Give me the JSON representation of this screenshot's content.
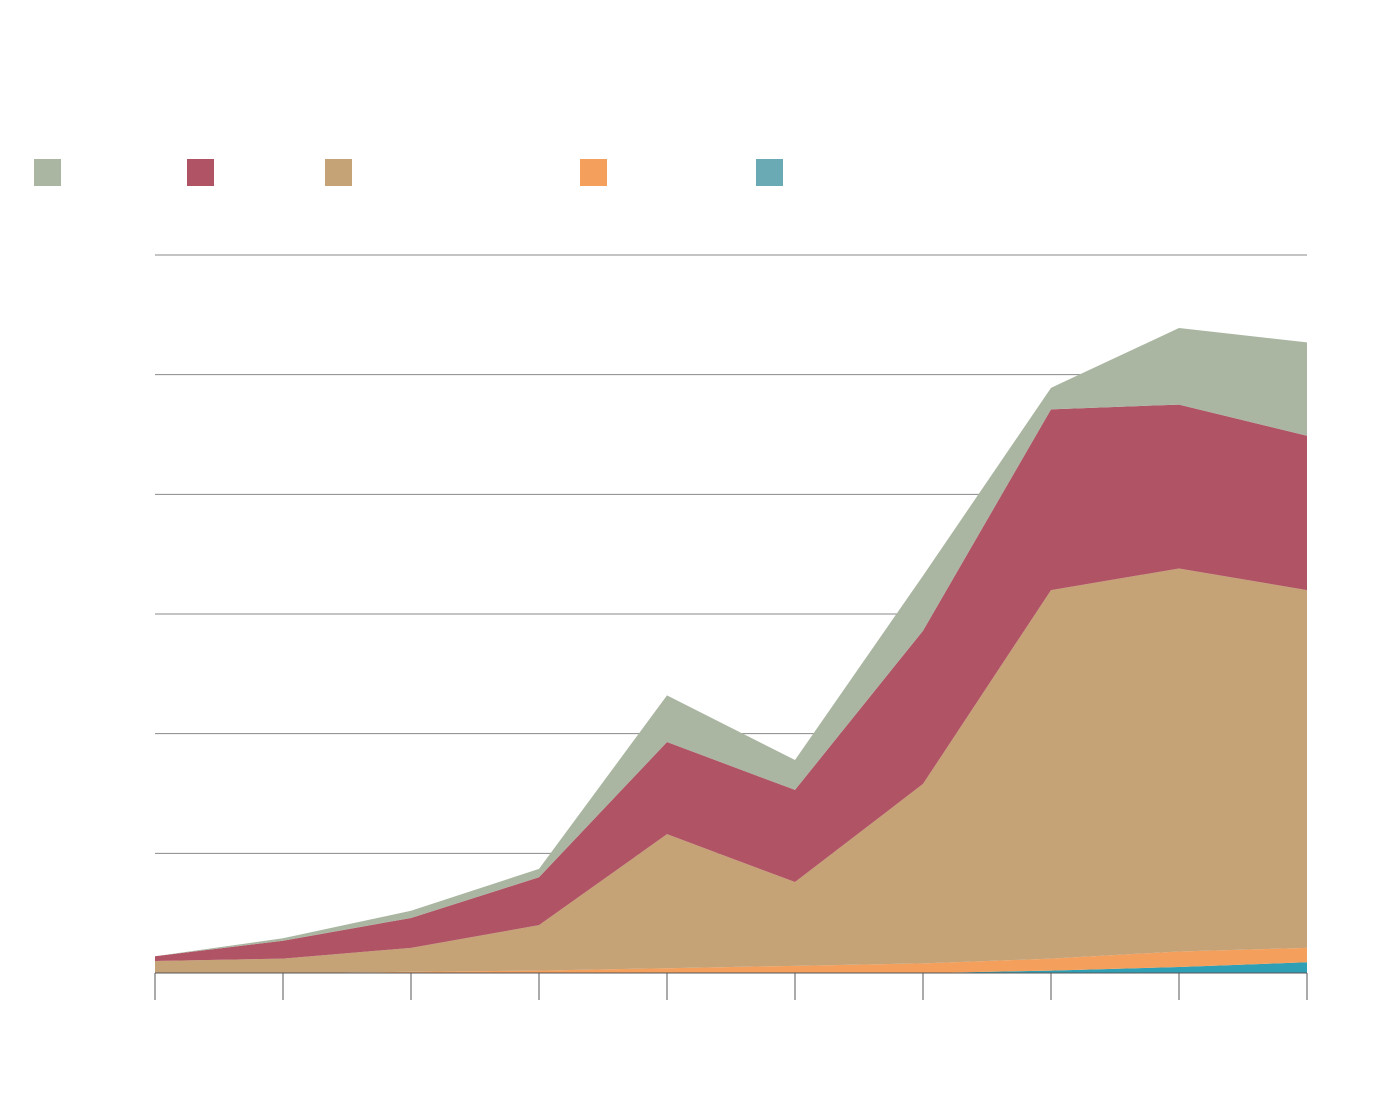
{
  "chart_data": {
    "type": "area",
    "stacked": true,
    "title": "",
    "xlabel": "",
    "ylabel": "",
    "x": [
      0,
      1,
      2,
      3,
      4,
      5,
      6,
      7,
      8,
      9
    ],
    "x_tick_labels": [
      "",
      "",
      "",
      "",
      "",
      "",
      "",
      "",
      "",
      ""
    ],
    "ylim": [
      0,
      6
    ],
    "y_gridlines": [
      1,
      2,
      3,
      4,
      5,
      6
    ],
    "y_tick_labels": [
      "",
      "",
      "",
      "",
      "",
      ""
    ],
    "grid": "horizontal",
    "legend_position": "top-left",
    "series": [
      {
        "name": "",
        "color": "#2f9fb5",
        "values": [
          0.0,
          0.0,
          0.0,
          0.0,
          0.0,
          0.0,
          0.0,
          0.02,
          0.05,
          0.09
        ]
      },
      {
        "name": "",
        "color": "#f4a05c",
        "values": [
          0.0,
          0.0,
          0.01,
          0.02,
          0.04,
          0.06,
          0.08,
          0.1,
          0.13,
          0.12
        ]
      },
      {
        "name": "",
        "color": "#c6a277",
        "values": [
          0.1,
          0.12,
          0.2,
          0.38,
          1.12,
          0.7,
          1.5,
          3.08,
          3.2,
          2.99
        ]
      },
      {
        "name": "",
        "color": "#b05365",
        "values": [
          0.04,
          0.15,
          0.25,
          0.4,
          0.77,
          0.77,
          1.28,
          1.51,
          1.37,
          1.29
        ]
      },
      {
        "name": "",
        "color": "#aab6a2",
        "values": [
          0.0,
          0.02,
          0.06,
          0.07,
          0.39,
          0.25,
          0.46,
          0.18,
          0.64,
          0.78
        ]
      }
    ],
    "legend_order": [
      4,
      3,
      2,
      1,
      0
    ],
    "legend_swatch_colors": [
      "#aab6a2",
      "#b05365",
      "#c6a277",
      "#f4a05c",
      "#6aaab5"
    ]
  }
}
